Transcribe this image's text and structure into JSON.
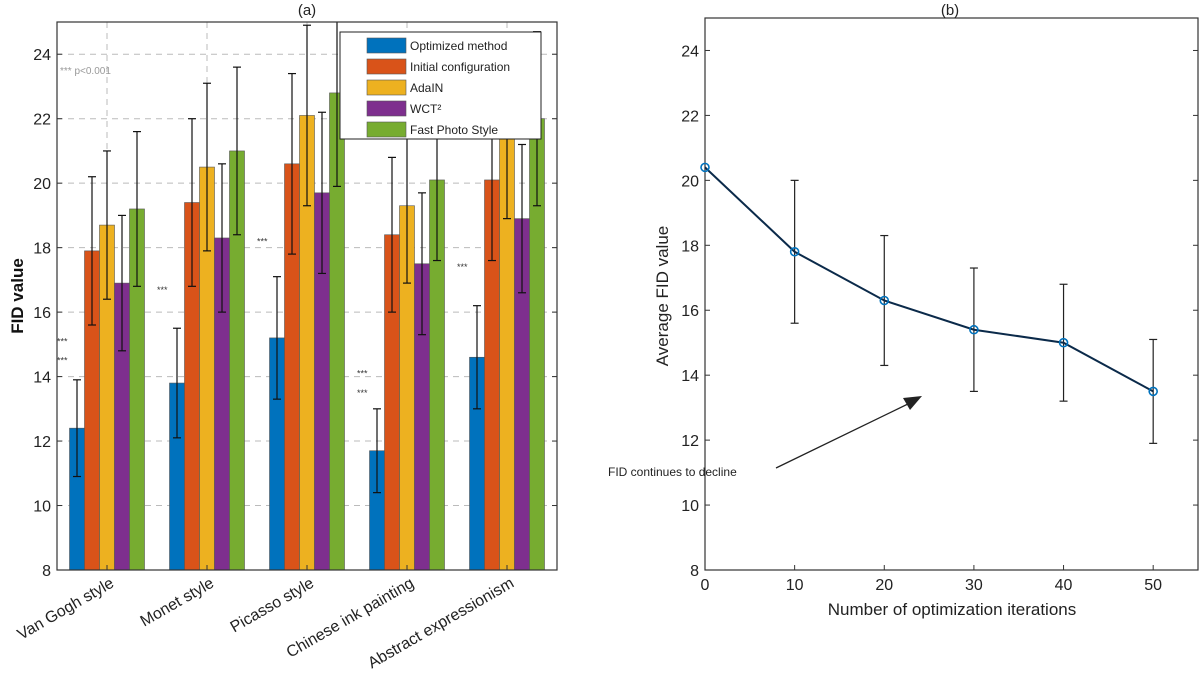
{
  "chart_data": [
    {
      "type": "bar",
      "title": "(a)",
      "xlabel": "",
      "ylabel": "FID value",
      "ylim": [
        8,
        25
      ],
      "yticks": [
        8,
        10,
        12,
        14,
        16,
        18,
        20,
        22,
        24
      ],
      "grid": true,
      "legend_placement": "top-right",
      "categories": [
        "Van Gogh style",
        "Monet style",
        "Picasso style",
        "Chinese ink painting",
        "Abstract expressionism"
      ],
      "series": [
        {
          "name": "Optimized method",
          "color": "#0072BD",
          "values": [
            12.4,
            13.8,
            15.2,
            11.7,
            14.6
          ],
          "error": [
            1.5,
            1.7,
            1.9,
            1.3,
            1.6
          ]
        },
        {
          "name": "Initial configuration",
          "color": "#D95319",
          "values": [
            17.9,
            19.4,
            20.6,
            18.4,
            20.1
          ],
          "error": [
            2.3,
            2.6,
            2.8,
            2.4,
            2.5
          ]
        },
        {
          "name": "AdaIN",
          "color": "#EDB120",
          "values": [
            18.7,
            20.5,
            22.1,
            19.3,
            21.6
          ],
          "error": [
            2.3,
            2.6,
            2.8,
            2.4,
            2.7
          ]
        },
        {
          "name": "WCT²",
          "color": "#7E2F8E",
          "values": [
            16.9,
            18.3,
            19.7,
            17.5,
            18.9
          ],
          "error": [
            2.1,
            2.3,
            2.5,
            2.2,
            2.3
          ]
        },
        {
          "name": "Fast Photo Style",
          "color": "#77AC30",
          "values": [
            19.2,
            21.0,
            22.8,
            20.1,
            22.0
          ],
          "error": [
            2.4,
            2.6,
            2.9,
            2.5,
            2.7
          ]
        }
      ],
      "annotations": {
        "significance_legend": "*** p<0.001",
        "marker": "***"
      }
    },
    {
      "type": "line",
      "title": "(b)",
      "xlabel": "Number of optimization iterations",
      "ylabel": "Average FID value",
      "xlim": [
        0,
        55
      ],
      "ylim": [
        8,
        25
      ],
      "xticks": [
        0,
        10,
        20,
        30,
        40,
        50
      ],
      "yticks": [
        8,
        10,
        12,
        14,
        16,
        18,
        20,
        22,
        24
      ],
      "grid": false,
      "x": [
        0,
        10,
        20,
        30,
        40,
        50
      ],
      "y": [
        20.4,
        17.8,
        16.3,
        15.4,
        15.0,
        13.5
      ],
      "error": [
        0,
        2.2,
        2.0,
        1.9,
        1.8,
        1.6
      ],
      "line_color": "#0B2A4A",
      "marker_color": "#0072BD",
      "annotation": "FID continues to decline"
    }
  ]
}
